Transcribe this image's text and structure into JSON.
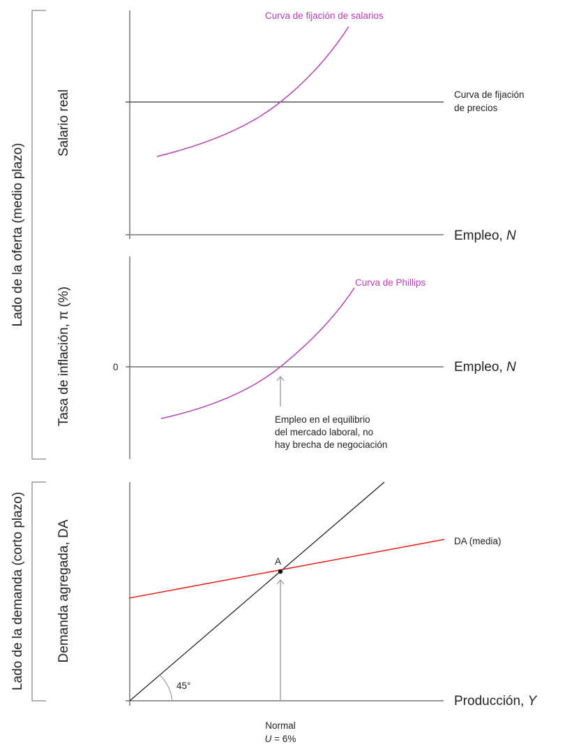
{
  "brackets": {
    "supply_side": "Lado de la oferta (medio plazo)",
    "demand_side": "Lado de la demanda (corto plazo)"
  },
  "panel_wage": {
    "y_label": "Salario real",
    "x_label": "Empleo, ",
    "x_label_var": "N",
    "wage_setting_label": "Curva de fijación de salarios",
    "price_setting_label_1": "Curva de fijación",
    "price_setting_label_2": "de precios"
  },
  "panel_phillips": {
    "y_label": "Tasa de inflación, π (%)",
    "x_label": "Empleo, ",
    "x_label_var": "N",
    "zero_tick": "0",
    "phillips_label": "Curva de Phillips",
    "note_1": "Empleo en el equilibrio",
    "note_2": "del mercado laboral, no",
    "note_3": "hay brecha de negociación"
  },
  "panel_demand": {
    "y_label": "Demanda agregada, DA",
    "x_label": "Producción, ",
    "x_label_var": "Y",
    "da_label": "DA (media)",
    "point_label": "A",
    "angle_label": "45°",
    "tick_label_1": "Normal",
    "tick_label_2_var": "U",
    "tick_label_2_rest": " = 6%"
  },
  "colors": {
    "curve": "#b23fb2",
    "da_line": "#e2231a",
    "axis": "#555555",
    "arrow": "#999999"
  }
}
